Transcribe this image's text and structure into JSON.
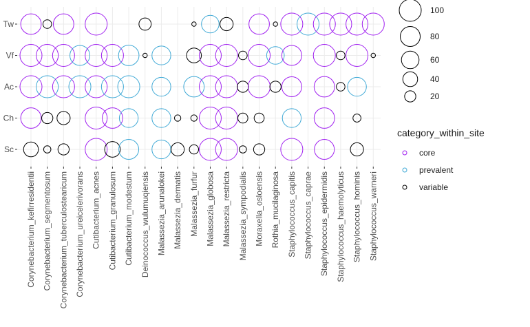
{
  "chart_data": {
    "type": "scatter",
    "x_categories": [
      "Corynebacterium_kefirresidentii",
      "Corynebacterium_segmentosum",
      "Corynebacterium_tuberculostearicum",
      "Corynebacterium_ureicelerivorans",
      "Cutibacterium_acnes",
      "Cutibacterium_granulosum",
      "Cutibacterium_modestum",
      "Deinococcus_wulumuqiensis",
      "Malassezia_arunalokei",
      "Malassezia_dermatis",
      "Malassezia_furfur",
      "Malassezia_globosa",
      "Malassezia_restricta",
      "Malassezia_sympodialis",
      "Moraxella_osloensis",
      "Rothia_mucilaginosa",
      "Staphylococcus_capitis",
      "Staphylococcus_caprae",
      "Staphylococcus_epidermidis",
      "Staphylococcus_haemolyticus",
      "Staphylococcus_hominis",
      "Staphylococcus_warneri"
    ],
    "y_categories": [
      "Sc",
      "Ch",
      "Ac",
      "Vf",
      "Tw"
    ],
    "size_legend": {
      "title": "",
      "breaks": [
        100,
        80,
        60,
        40,
        20
      ]
    },
    "color_legend": {
      "title": "category_within_site",
      "entries": [
        {
          "label": "core",
          "color": "#A020F0"
        },
        {
          "label": "prevalent",
          "color": "#3FA9D6"
        },
        {
          "label": "variable",
          "color": "#000000"
        }
      ]
    },
    "grid": true,
    "points": [
      {
        "x": "Corynebacterium_kefirresidentii",
        "y": "Tw",
        "size": 85,
        "category": "core"
      },
      {
        "x": "Corynebacterium_segmentosum",
        "y": "Tw",
        "size": 10,
        "category": "variable"
      },
      {
        "x": "Corynebacterium_tuberculostearicum",
        "y": "Tw",
        "size": 85,
        "category": "core"
      },
      {
        "x": "Cutibacterium_acnes",
        "y": "Tw",
        "size": 100,
        "category": "core"
      },
      {
        "x": "Deinococcus_wulumuqiensis",
        "y": "Tw",
        "size": 25,
        "category": "variable"
      },
      {
        "x": "Malassezia_furfur",
        "y": "Tw",
        "size": 1,
        "category": "variable"
      },
      {
        "x": "Malassezia_globosa",
        "y": "Tw",
        "size": 60,
        "category": "prevalent"
      },
      {
        "x": "Malassezia_restricta",
        "y": "Tw",
        "size": 30,
        "category": "variable"
      },
      {
        "x": "Moraxella_osloensis",
        "y": "Tw",
        "size": 85,
        "category": "core"
      },
      {
        "x": "Rothia_mucilaginosa",
        "y": "Tw",
        "size": 1,
        "category": "variable"
      },
      {
        "x": "Staphylococcus_capitis",
        "y": "Tw",
        "size": 100,
        "category": "core"
      },
      {
        "x": "Staphylococcus_caprae",
        "y": "Tw",
        "size": 100,
        "category": "prevalent"
      },
      {
        "x": "Staphylococcus_epidermidis",
        "y": "Tw",
        "size": 100,
        "category": "core"
      },
      {
        "x": "Staphylococcus_haemolyticus",
        "y": "Tw",
        "size": 100,
        "category": "core"
      },
      {
        "x": "Staphylococcus_hominis",
        "y": "Tw",
        "size": 100,
        "category": "core"
      },
      {
        "x": "Staphylococcus_warneri",
        "y": "Tw",
        "size": 100,
        "category": "core"
      },
      {
        "x": "Corynebacterium_kefirresidentii",
        "y": "Vf",
        "size": 100,
        "category": "core"
      },
      {
        "x": "Corynebacterium_segmentosum",
        "y": "Vf",
        "size": 100,
        "category": "core"
      },
      {
        "x": "Corynebacterium_tuberculostearicum",
        "y": "Vf",
        "size": 100,
        "category": "core"
      },
      {
        "x": "Corynebacterium_ureicelerivorans",
        "y": "Vf",
        "size": 80,
        "category": "prevalent"
      },
      {
        "x": "Cutibacterium_acnes",
        "y": "Vf",
        "size": 100,
        "category": "core"
      },
      {
        "x": "Cutibacterium_granulosum",
        "y": "Vf",
        "size": 100,
        "category": "core"
      },
      {
        "x": "Cutibacterium_modestum",
        "y": "Vf",
        "size": 85,
        "category": "prevalent"
      },
      {
        "x": "Deinococcus_wulumuqiensis",
        "y": "Vf",
        "size": 1,
        "category": "variable"
      },
      {
        "x": "Malassezia_arunalokei",
        "y": "Vf",
        "size": 70,
        "category": "prevalent"
      },
      {
        "x": "Malassezia_furfur",
        "y": "Vf",
        "size": 40,
        "category": "variable"
      },
      {
        "x": "Malassezia_globosa",
        "y": "Vf",
        "size": 100,
        "category": "core"
      },
      {
        "x": "Malassezia_restricta",
        "y": "Vf",
        "size": 100,
        "category": "core"
      },
      {
        "x": "Malassezia_sympodialis",
        "y": "Vf",
        "size": 10,
        "category": "variable"
      },
      {
        "x": "Moraxella_osloensis",
        "y": "Vf",
        "size": 100,
        "category": "core"
      },
      {
        "x": "Rothia_mucilaginosa",
        "y": "Vf",
        "size": 60,
        "category": "prevalent"
      },
      {
        "x": "Staphylococcus_capitis",
        "y": "Vf",
        "size": 80,
        "category": "core"
      },
      {
        "x": "Staphylococcus_epidermidis",
        "y": "Vf",
        "size": 100,
        "category": "core"
      },
      {
        "x": "Staphylococcus_haemolyticus",
        "y": "Vf",
        "size": 10,
        "category": "variable"
      },
      {
        "x": "Staphylococcus_hominis",
        "y": "Vf",
        "size": 100,
        "category": "core"
      },
      {
        "x": "Staphylococcus_warneri",
        "y": "Vf",
        "size": 1,
        "category": "variable"
      },
      {
        "x": "Corynebacterium_kefirresidentii",
        "y": "Ac",
        "size": 100,
        "category": "core"
      },
      {
        "x": "Corynebacterium_segmentosum",
        "y": "Ac",
        "size": 100,
        "category": "prevalent"
      },
      {
        "x": "Corynebacterium_tuberculostearicum",
        "y": "Ac",
        "size": 100,
        "category": "core"
      },
      {
        "x": "Corynebacterium_ureicelerivorans",
        "y": "Ac",
        "size": 100,
        "category": "prevalent"
      },
      {
        "x": "Cutibacterium_acnes",
        "y": "Ac",
        "size": 100,
        "category": "core"
      },
      {
        "x": "Cutibacterium_granulosum",
        "y": "Ac",
        "size": 100,
        "category": "prevalent"
      },
      {
        "x": "Cutibacterium_modestum",
        "y": "Ac",
        "size": 100,
        "category": "prevalent"
      },
      {
        "x": "Malassezia_arunalokei",
        "y": "Ac",
        "size": 70,
        "category": "prevalent"
      },
      {
        "x": "Malassezia_furfur",
        "y": "Ac",
        "size": 85,
        "category": "prevalent"
      },
      {
        "x": "Malassezia_globosa",
        "y": "Ac",
        "size": 100,
        "category": "core"
      },
      {
        "x": "Malassezia_restricta",
        "y": "Ac",
        "size": 100,
        "category": "core"
      },
      {
        "x": "Malassezia_sympodialis",
        "y": "Ac",
        "size": 20,
        "category": "variable"
      },
      {
        "x": "Moraxella_osloensis",
        "y": "Ac",
        "size": 100,
        "category": "core"
      },
      {
        "x": "Rothia_mucilaginosa",
        "y": "Ac",
        "size": 20,
        "category": "variable"
      },
      {
        "x": "Staphylococcus_capitis",
        "y": "Ac",
        "size": 80,
        "category": "core"
      },
      {
        "x": "Staphylococcus_epidermidis",
        "y": "Ac",
        "size": 85,
        "category": "core"
      },
      {
        "x": "Staphylococcus_haemolyticus",
        "y": "Ac",
        "size": 10,
        "category": "variable"
      },
      {
        "x": "Staphylococcus_hominis",
        "y": "Ac",
        "size": 70,
        "category": "prevalent"
      },
      {
        "x": "Corynebacterium_kefirresidentii",
        "y": "Ch",
        "size": 85,
        "category": "core"
      },
      {
        "x": "Corynebacterium_segmentosum",
        "y": "Ch",
        "size": 20,
        "category": "variable"
      },
      {
        "x": "Corynebacterium_tuberculostearicum",
        "y": "Ch",
        "size": 30,
        "category": "variable"
      },
      {
        "x": "Cutibacterium_acnes",
        "y": "Ch",
        "size": 100,
        "category": "core"
      },
      {
        "x": "Cutibacterium_granulosum",
        "y": "Ch",
        "size": 85,
        "category": "core"
      },
      {
        "x": "Cutibacterium_modestum",
        "y": "Ch",
        "size": 70,
        "category": "prevalent"
      },
      {
        "x": "Malassezia_arunalokei",
        "y": "Ch",
        "size": 70,
        "category": "prevalent"
      },
      {
        "x": "Malassezia_dermatis",
        "y": "Ch",
        "size": 4,
        "category": "variable"
      },
      {
        "x": "Malassezia_furfur",
        "y": "Ch",
        "size": 4,
        "category": "variable"
      },
      {
        "x": "Malassezia_globosa",
        "y": "Ch",
        "size": 100,
        "category": "core"
      },
      {
        "x": "Malassezia_restricta",
        "y": "Ch",
        "size": 100,
        "category": "core"
      },
      {
        "x": "Malassezia_sympodialis",
        "y": "Ch",
        "size": 15,
        "category": "variable"
      },
      {
        "x": "Moraxella_osloensis",
        "y": "Ch",
        "size": 15,
        "category": "variable"
      },
      {
        "x": "Staphylococcus_capitis",
        "y": "Ch",
        "size": 70,
        "category": "prevalent"
      },
      {
        "x": "Staphylococcus_epidermidis",
        "y": "Ch",
        "size": 85,
        "category": "core"
      },
      {
        "x": "Staphylococcus_hominis",
        "y": "Ch",
        "size": 8,
        "category": "variable"
      },
      {
        "x": "Corynebacterium_kefirresidentii",
        "y": "Sc",
        "size": 40,
        "category": "variable"
      },
      {
        "x": "Corynebacterium_segmentosum",
        "y": "Sc",
        "size": 6,
        "category": "variable"
      },
      {
        "x": "Corynebacterium_tuberculostearicum",
        "y": "Sc",
        "size": 20,
        "category": "variable"
      },
      {
        "x": "Cutibacterium_acnes",
        "y": "Sc",
        "size": 100,
        "category": "core"
      },
      {
        "x": "Cutibacterium_granulosum",
        "y": "Sc",
        "size": 45,
        "category": "variable"
      },
      {
        "x": "Cutibacterium_modestum",
        "y": "Sc",
        "size": 80,
        "category": "prevalent"
      },
      {
        "x": "Malassezia_arunalokei",
        "y": "Sc",
        "size": 70,
        "category": "prevalent"
      },
      {
        "x": "Malassezia_dermatis",
        "y": "Sc",
        "size": 30,
        "category": "variable"
      },
      {
        "x": "Malassezia_furfur",
        "y": "Sc",
        "size": 12,
        "category": "variable"
      },
      {
        "x": "Malassezia_globosa",
        "y": "Sc",
        "size": 100,
        "category": "core"
      },
      {
        "x": "Malassezia_restricta",
        "y": "Sc",
        "size": 100,
        "category": "core"
      },
      {
        "x": "Malassezia_sympodialis",
        "y": "Sc",
        "size": 6,
        "category": "variable"
      },
      {
        "x": "Moraxella_osloensis",
        "y": "Sc",
        "size": 20,
        "category": "variable"
      },
      {
        "x": "Staphylococcus_capitis",
        "y": "Sc",
        "size": 100,
        "category": "core"
      },
      {
        "x": "Staphylococcus_epidermidis",
        "y": "Sc",
        "size": 80,
        "category": "core"
      },
      {
        "x": "Staphylococcus_hominis",
        "y": "Sc",
        "size": 30,
        "category": "variable"
      }
    ]
  }
}
